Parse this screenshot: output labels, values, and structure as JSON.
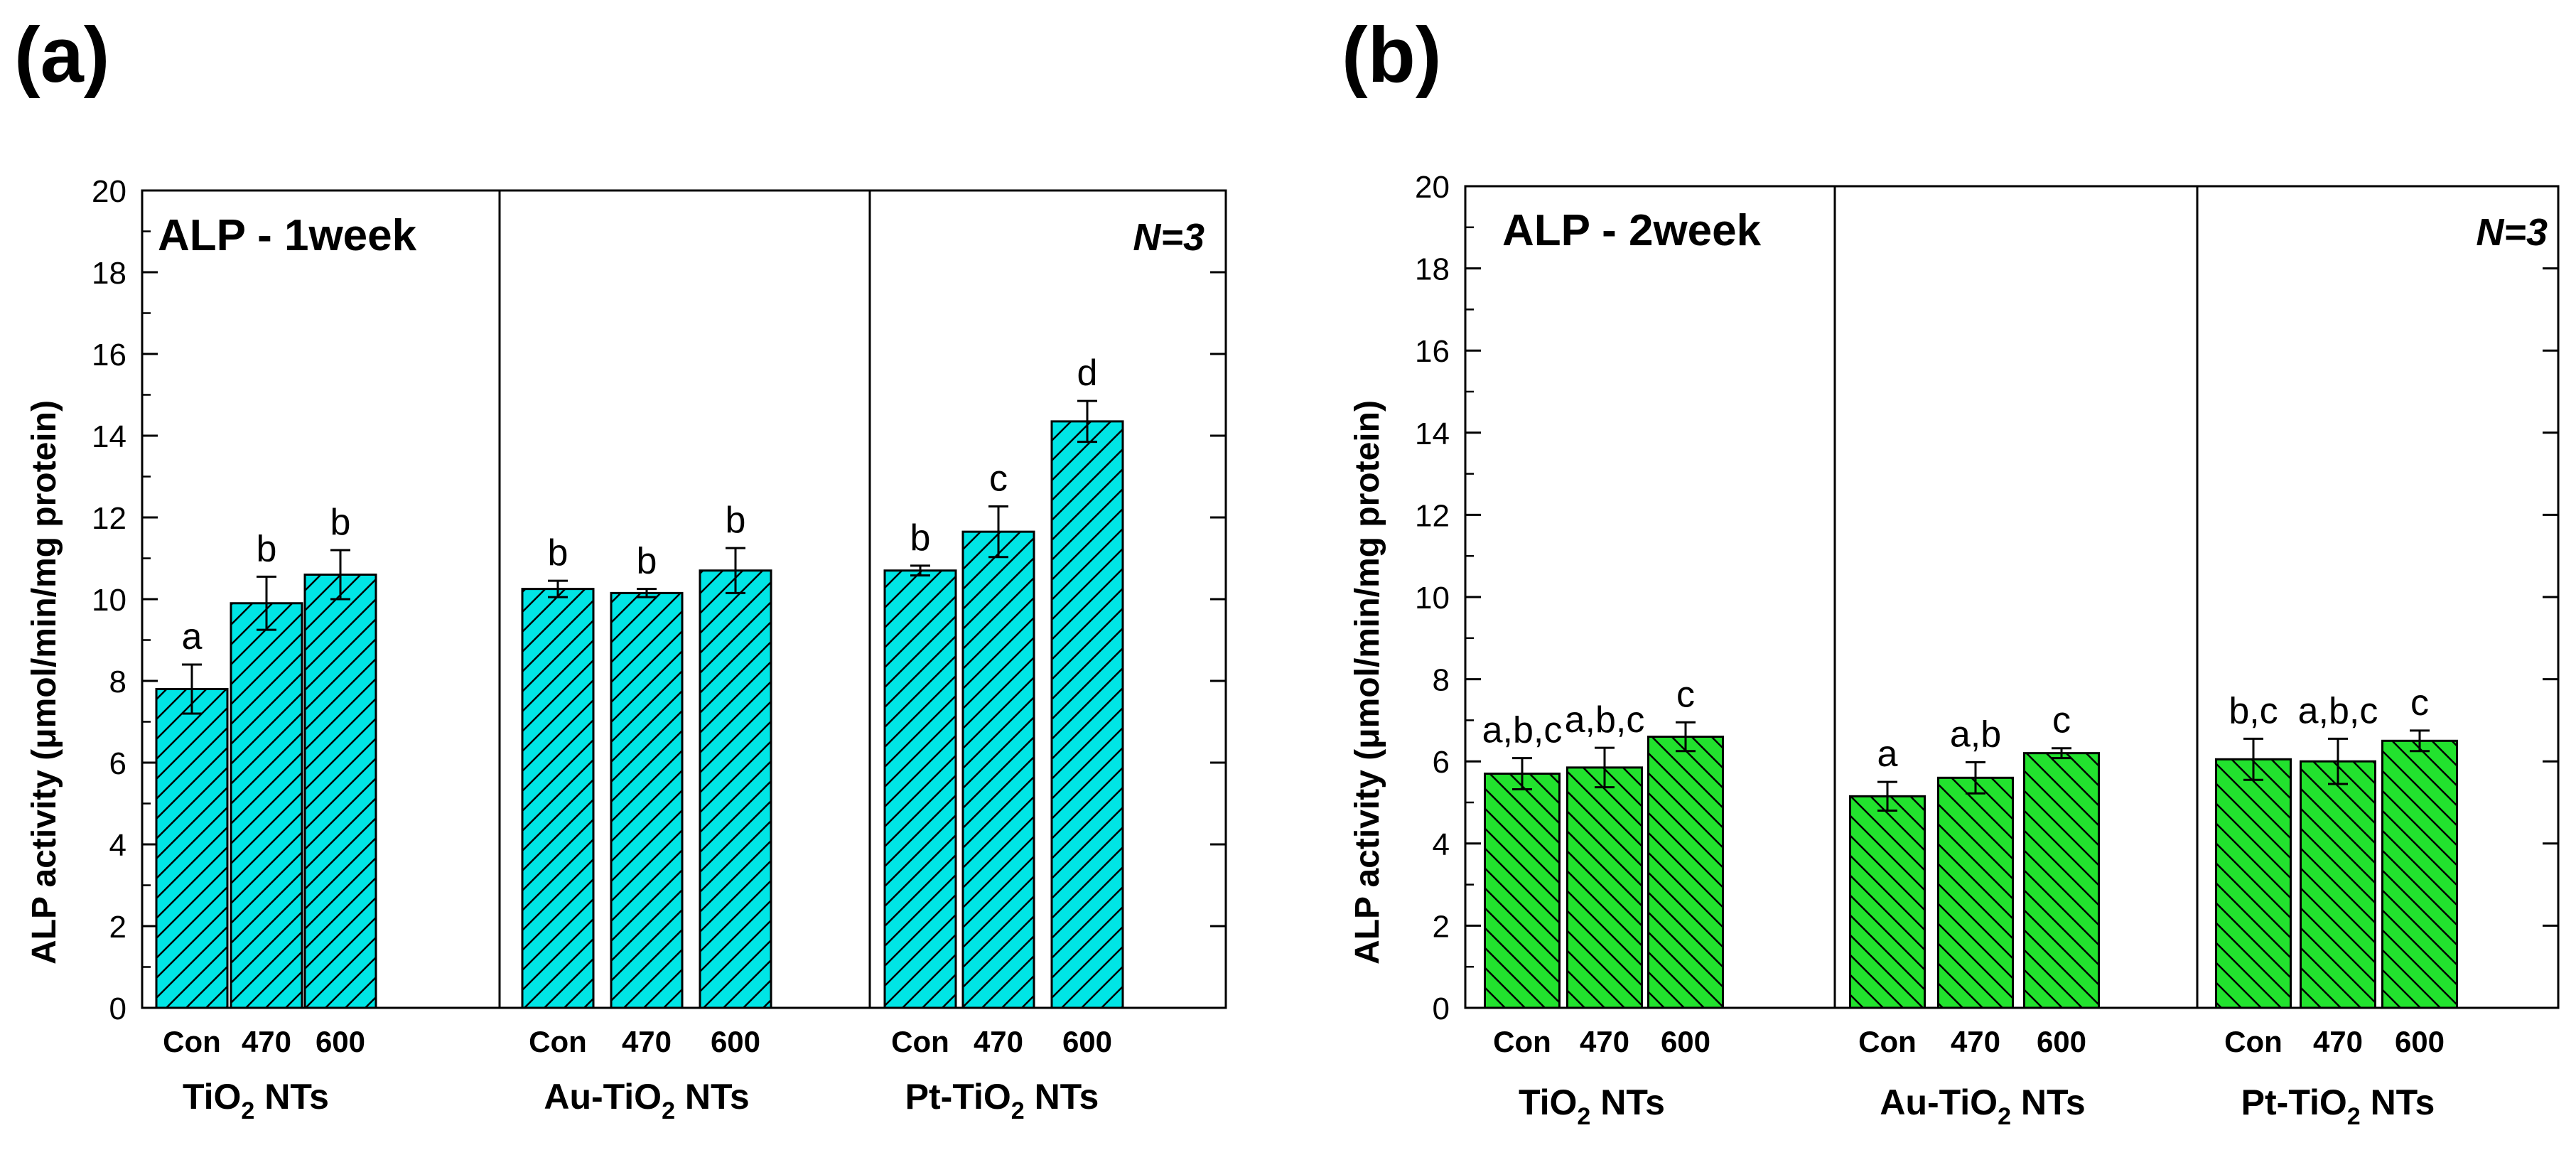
{
  "chart_data": [
    {
      "type": "bar",
      "panel_label": "(a)",
      "title": "ALP - 1week",
      "note": "N=3",
      "ylabel": "ALP activity (μmol/min/mg protein)",
      "ylim": [
        0,
        20
      ],
      "yticks": [
        "0",
        "2",
        "4",
        "6",
        "8",
        "10",
        "12",
        "14",
        "16",
        "18",
        "20"
      ],
      "bar_color": "#00e5e5",
      "groups": [
        {
          "label_main": "TiO",
          "label_sub": "2",
          "label_rest": " NTs",
          "categories": [
            "Con",
            "470",
            "600"
          ],
          "values": [
            7.8,
            9.9,
            10.6
          ],
          "errors": [
            0.6,
            0.65,
            0.6
          ],
          "letters": [
            "a",
            "b",
            "b"
          ]
        },
        {
          "label_main": "Au-TiO",
          "label_sub": "2",
          "label_rest": " NTs",
          "categories": [
            "Con",
            "470",
            "600"
          ],
          "values": [
            10.25,
            10.15,
            10.7
          ],
          "errors": [
            0.2,
            0.1,
            0.55
          ],
          "letters": [
            "b",
            "b",
            "b"
          ]
        },
        {
          "label_main": "Pt-TiO",
          "label_sub": "2",
          "label_rest": " NTs",
          "categories": [
            "Con",
            "470",
            "600"
          ],
          "values": [
            10.7,
            11.65,
            14.35
          ],
          "errors": [
            0.12,
            0.62,
            0.5
          ],
          "letters": [
            "b",
            "c",
            "d"
          ]
        }
      ]
    },
    {
      "type": "bar",
      "panel_label": "(b)",
      "title": "ALP - 2week",
      "note": "N=3",
      "ylabel": "ALP activity (μmol/min/mg protein)",
      "ylim": [
        0,
        20
      ],
      "yticks": [
        "0",
        "2",
        "4",
        "6",
        "8",
        "10",
        "12",
        "14",
        "16",
        "18",
        "20"
      ],
      "bar_color": "#22e22e",
      "groups": [
        {
          "label_main": "TiO",
          "label_sub": "2",
          "label_rest": " NTs",
          "categories": [
            "Con",
            "470",
            "600"
          ],
          "values": [
            5.7,
            5.85,
            6.6
          ],
          "errors": [
            0.38,
            0.48,
            0.35
          ],
          "letters": [
            "a,b,c",
            "a,b,c",
            "c"
          ]
        },
        {
          "label_main": "Au-TiO",
          "label_sub": "2",
          "label_rest": " NTs",
          "categories": [
            "Con",
            "470",
            "600"
          ],
          "values": [
            5.15,
            5.6,
            6.2
          ],
          "errors": [
            0.35,
            0.38,
            0.12
          ],
          "letters": [
            "a",
            "a,b",
            "c"
          ]
        },
        {
          "label_main": "Pt-TiO",
          "label_sub": "2",
          "label_rest": " NTs",
          "categories": [
            "Con",
            "470",
            "600"
          ],
          "values": [
            6.05,
            6.0,
            6.5
          ],
          "errors": [
            0.5,
            0.55,
            0.25
          ],
          "letters": [
            "b,c",
            "a,b,c",
            "c"
          ]
        }
      ]
    }
  ]
}
